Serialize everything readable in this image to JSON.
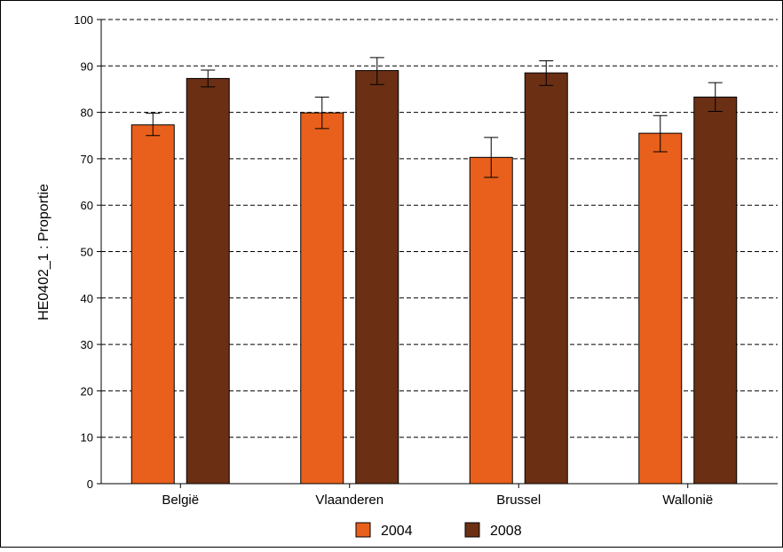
{
  "chart_data": {
    "type": "bar",
    "title": "",
    "xlabel": "",
    "ylabel": "HE0402_1 : Proportie",
    "ylim": [
      0,
      100
    ],
    "yticks": [
      0,
      10,
      20,
      30,
      40,
      50,
      60,
      70,
      80,
      90,
      100
    ],
    "grid": true,
    "legend_position": "bottom",
    "categories": [
      "België",
      "Vlaanderen",
      "Brussel",
      "Wallonië"
    ],
    "series": [
      {
        "name": "2004",
        "color": "#e8601c",
        "values": [
          77.3,
          79.9,
          70.3,
          75.5
        ],
        "err_low": [
          75.0,
          76.5,
          66.0,
          71.5
        ],
        "err_high": [
          79.8,
          83.3,
          74.6,
          79.3
        ]
      },
      {
        "name": "2008",
        "color": "#6b2f14",
        "values": [
          87.3,
          89.0,
          88.5,
          83.3
        ],
        "err_low": [
          85.5,
          86.0,
          85.8,
          80.2
        ],
        "err_high": [
          89.1,
          91.8,
          91.1,
          86.4
        ]
      }
    ]
  }
}
